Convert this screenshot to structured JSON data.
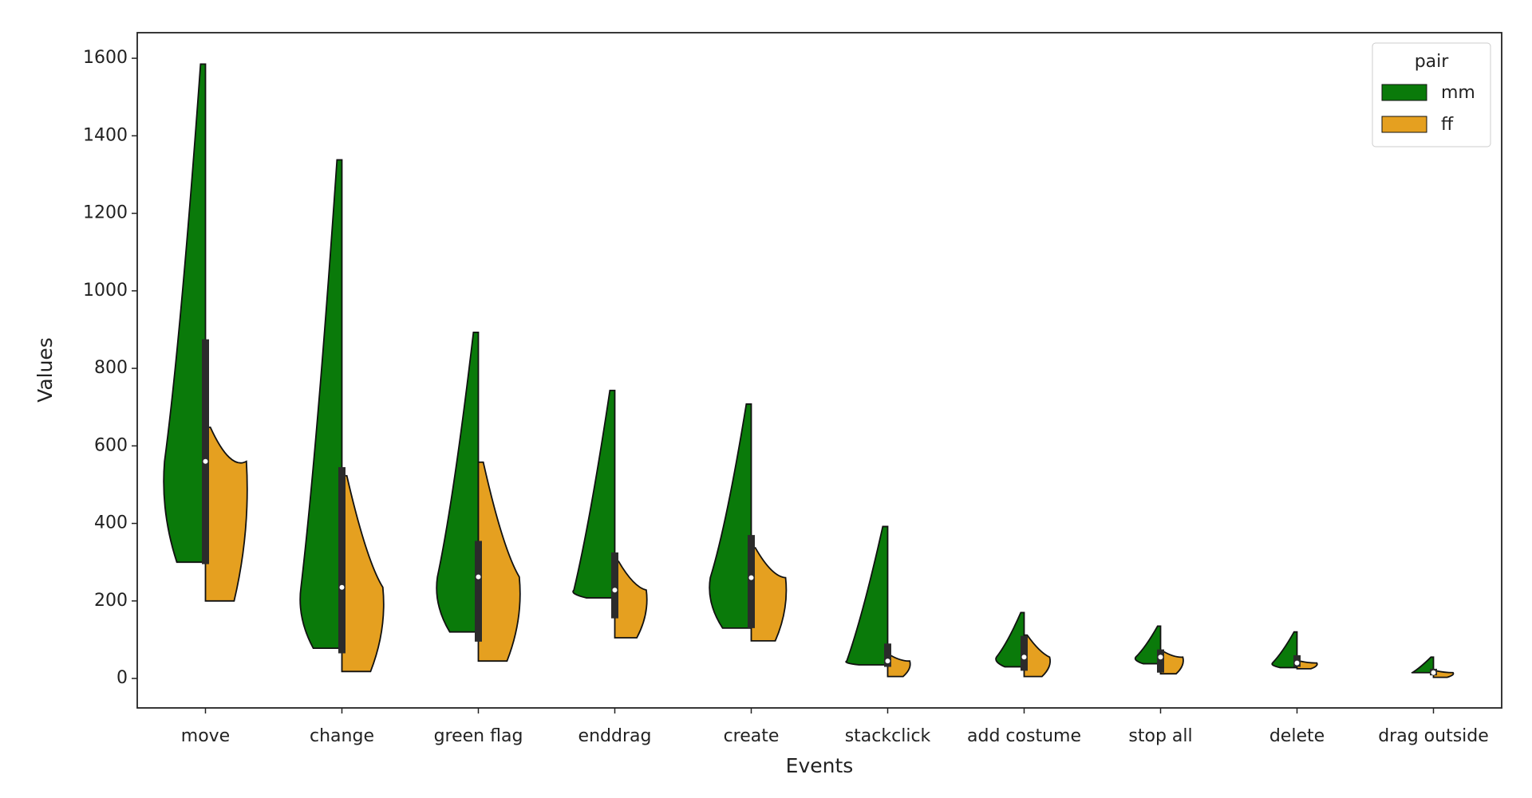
{
  "chart_data": {
    "type": "violin",
    "xlabel": "Events",
    "ylabel": "Values",
    "categories": [
      "move",
      "change",
      "green flag",
      "enddrag",
      "create",
      "stackclick",
      "add costume",
      "stop all",
      "delete",
      "drag outside"
    ],
    "series": [
      {
        "name": "mm",
        "color": "#0a7a0a",
        "min": [
          300,
          78,
          120,
          208,
          130,
          35,
          30,
          38,
          28,
          15
        ],
        "max": [
          1585,
          1338,
          893,
          743,
          708,
          392,
          170,
          135,
          120,
          55
        ]
      },
      {
        "name": "ff",
        "color": "#e5a020",
        "min": [
          200,
          18,
          45,
          105,
          97,
          5,
          5,
          12,
          25,
          3
        ],
        "max": [
          648,
          523,
          558,
          302,
          337,
          60,
          112,
          70,
          45,
          20
        ]
      }
    ],
    "box": {
      "q1": [
        295,
        65,
        95,
        155,
        130,
        30,
        20,
        15,
        30,
        8
      ],
      "median": [
        560,
        235,
        262,
        228,
        260,
        45,
        55,
        55,
        40,
        15
      ],
      "q3": [
        875,
        545,
        355,
        325,
        370,
        90,
        110,
        75,
        60,
        25
      ]
    },
    "ylim": [
      -76,
      1666
    ],
    "yticks": [
      0,
      200,
      400,
      600,
      800,
      1000,
      1200,
      1400,
      1600
    ],
    "legend_title": "pair",
    "legend": "upper right",
    "grid": false
  }
}
